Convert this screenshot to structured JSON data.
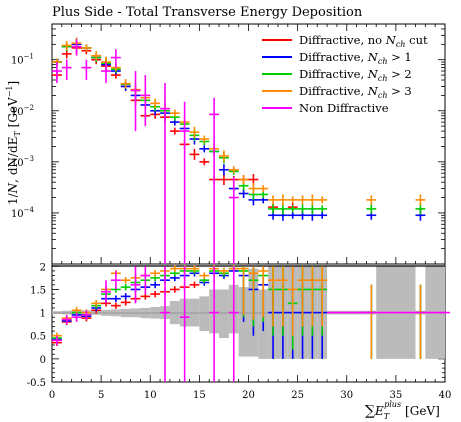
{
  "chart_data": [
    {
      "panel": "main",
      "type": "scatter",
      "title": "Plus Side - Total Transverse Energy Deposition",
      "ylabel": "1/N dN/dE_T [GeV^-1]",
      "ylabel_parts": {
        "one": "1/",
        "n": "N",
        "dn": ", dN/dE",
        "t": "T",
        "unit": "[GeV",
        "exp": "−1",
        "close": "]"
      },
      "yscale": "log",
      "xlim": [
        0,
        40
      ],
      "ylim": [
        1e-05,
        0.5
      ],
      "yticks": [
        {
          "v": 0.1,
          "base": "10",
          "exp": "−1"
        },
        {
          "v": 0.01,
          "base": "10",
          "exp": "−2"
        },
        {
          "v": 0.001,
          "base": "10",
          "exp": "−3"
        },
        {
          "v": 0.0001,
          "base": "10",
          "exp": "−4"
        }
      ],
      "legend_position": "top-right",
      "legend": [
        {
          "key": "nocut",
          "color": "#ff0000",
          "pre": "Diffractive, no ",
          "sym": "N",
          "sub": "ch",
          "post": " cut"
        },
        {
          "key": "gt1",
          "color": "#0000ff",
          "pre": "Diffractive, ",
          "sym": "N",
          "sub": "ch",
          "post": " > 1"
        },
        {
          "key": "gt2",
          "color": "#00cc00",
          "pre": "Diffractive, ",
          "sym": "N",
          "sub": "ch",
          "post": " > 2"
        },
        {
          "key": "gt3",
          "color": "#ff8c00",
          "pre": "Diffractive, ",
          "sym": "N",
          "sub": "ch",
          "post": " > 3"
        },
        {
          "key": "nondiff",
          "color": "#ff00ff",
          "pre": "Non Diffractive",
          "sym": "",
          "sub": "",
          "post": ""
        }
      ],
      "series": [
        {
          "name": "Diffractive, no N_ch cut",
          "key": "nocut",
          "color": "#ff0000",
          "x": [
            0.5,
            1.5,
            2.5,
            3.5,
            4.5,
            5.5,
            6.5,
            7.5,
            8.5,
            9.5,
            10.5,
            11.5,
            12.5,
            13.5,
            14.5,
            15.5,
            16.5,
            17.5,
            18.5,
            19.5,
            20.5,
            22.5,
            24.5
          ],
          "y": [
            0.05,
            0.13,
            0.17,
            0.15,
            0.1,
            0.075,
            0.05,
            0.03,
            0.016,
            0.008,
            0.0085,
            0.0075,
            0.004,
            0.0022,
            0.0014,
            0.001,
            0.00045,
            0.00045,
            0.00045,
            0.00045,
            0.00045,
            0.00013,
            0.00013
          ]
        },
        {
          "name": "Diffractive, N_ch > 1",
          "key": "gt1",
          "color": "#0000ff",
          "x": [
            0.5,
            1.5,
            2.5,
            3.5,
            4.5,
            5.5,
            6.5,
            7.5,
            8.5,
            9.5,
            10.5,
            11.5,
            12.5,
            13.5,
            14.5,
            15.5,
            16.5,
            17.5,
            18.5,
            19.5,
            20.5,
            21.5,
            22.5,
            23.5,
            24.5,
            25.5,
            26.5,
            27.5,
            32.5,
            37.5
          ],
          "y": [
            0.09,
            0.18,
            0.2,
            0.17,
            0.11,
            0.08,
            0.06,
            0.03,
            0.02,
            0.013,
            0.01,
            0.009,
            0.006,
            0.0045,
            0.0028,
            0.0018,
            0.0016,
            0.0007,
            0.0003,
            0.00024,
            0.00018,
            0.00018,
            9e-05,
            9e-05,
            9e-05,
            9e-05,
            9e-05,
            9e-05,
            9e-05,
            9e-05
          ]
        },
        {
          "name": "Diffractive, N_ch > 2",
          "key": "gt2",
          "color": "#00cc00",
          "x": [
            0.5,
            1.5,
            2.5,
            3.5,
            4.5,
            5.5,
            6.5,
            7.5,
            8.5,
            9.5,
            10.5,
            11.5,
            12.5,
            13.5,
            14.5,
            15.5,
            16.5,
            17.5,
            18.5,
            19.5,
            20.5,
            21.5,
            22.5,
            23.5,
            24.5,
            25.5,
            26.5,
            27.5,
            32.5,
            37.5
          ],
          "y": [
            0.09,
            0.18,
            0.21,
            0.17,
            0.11,
            0.085,
            0.065,
            0.033,
            0.025,
            0.016,
            0.012,
            0.01,
            0.0075,
            0.0055,
            0.0033,
            0.0025,
            0.0016,
            0.0012,
            0.00065,
            0.00034,
            0.00023,
            0.00023,
            0.00012,
            0.00012,
            0.00012,
            0.00012,
            0.00012,
            0.00012,
            0.00012,
            0.00012
          ]
        },
        {
          "name": "Diffractive, N_ch > 3",
          "key": "gt3",
          "color": "#ff8c00",
          "x": [
            0.5,
            1.5,
            2.5,
            3.5,
            4.5,
            5.5,
            6.5,
            7.5,
            8.5,
            9.5,
            10.5,
            11.5,
            12.5,
            13.5,
            14.5,
            15.5,
            16.5,
            17.5,
            18.5,
            19.5,
            20.5,
            21.5,
            22.5,
            23.5,
            24.5,
            25.5,
            26.5,
            27.5,
            32.5,
            37.5
          ],
          "y": [
            0.09,
            0.19,
            0.21,
            0.17,
            0.12,
            0.09,
            0.07,
            0.034,
            0.026,
            0.018,
            0.014,
            0.011,
            0.009,
            0.006,
            0.0038,
            0.0028,
            0.0018,
            0.0013,
            0.0007,
            0.00045,
            0.0003,
            0.0003,
            0.00018,
            0.00018,
            0.00018,
            0.00018,
            0.00018,
            0.00018,
            0.00018,
            0.00018
          ]
        },
        {
          "name": "Non Diffractive",
          "key": "nondiff",
          "color": "#ff00ff",
          "x": [
            0.5,
            1.5,
            2.5,
            3.5,
            5.5,
            6.5,
            8.5,
            9.5,
            11.5,
            13.5,
            16.5,
            18.5
          ],
          "y": [
            0.06,
            0.07,
            0.18,
            0.07,
            0.06,
            0.11,
            0.025,
            0.02,
            0.011,
            0.004,
            0.0085,
            0.0002
          ],
          "ylo": [
            0.035,
            0.04,
            0.12,
            0.04,
            0.035,
            0.07,
            0.004,
            0.005,
            1e-05,
            1e-05,
            1e-05,
            1e-05
          ],
          "yhi": [
            0.09,
            0.1,
            0.25,
            0.1,
            0.09,
            0.16,
            0.06,
            0.05,
            0.035,
            0.015,
            0.018,
            0.0005
          ]
        }
      ]
    },
    {
      "panel": "ratio",
      "type": "scatter",
      "xlabel_parts": {
        "sum": "∑",
        "e": "E",
        "t": "T",
        "plus": "plus",
        "unit": "[GeV]"
      },
      "xlim": [
        0,
        40
      ],
      "ylim": [
        -0.5,
        2.05
      ],
      "xticks": [
        0,
        5,
        10,
        15,
        20,
        25,
        30,
        35,
        40
      ],
      "yticks": [
        -0.5,
        0,
        0.5,
        1,
        1.5,
        2
      ],
      "band": {
        "x": [
          0,
          1,
          2,
          3,
          4,
          5,
          6,
          7,
          8,
          9,
          10,
          11,
          12,
          13,
          14,
          15,
          16,
          17,
          18,
          19,
          20,
          21,
          22,
          23,
          24,
          25,
          26,
          27,
          28,
          32,
          33,
          37,
          38,
          40
        ],
        "lo": [
          0.97,
          0.96,
          0.95,
          0.94,
          0.95,
          0.93,
          0.92,
          0.9,
          0.9,
          0.88,
          0.87,
          0.86,
          0.75,
          0.7,
          0.7,
          0.6,
          0.55,
          0.45,
          0.55,
          0.05,
          0.05,
          0.0,
          0.0,
          0.0,
          0.0,
          0.0,
          0.0,
          0.0,
          0.96,
          0.96,
          0.0,
          0.96,
          0.0,
          0.96
        ],
        "hi": [
          1.03,
          1.04,
          1.05,
          1.05,
          1.05,
          1.06,
          1.07,
          1.08,
          1.09,
          1.1,
          1.12,
          1.14,
          1.25,
          1.3,
          1.3,
          1.35,
          1.5,
          1.5,
          1.6,
          1.55,
          1.95,
          1.5,
          2.0,
          2.0,
          2.0,
          2.0,
          2.0,
          2.0,
          1.04,
          1.04,
          2.0,
          1.04,
          2.0,
          1.04
        ]
      },
      "series": [
        {
          "name": "nocut",
          "color": "#ff0000",
          "x": [
            0.5,
            1.5,
            2.5,
            3.5,
            4.5,
            5.5,
            6.5,
            7.5,
            8.5,
            9.5,
            10.5,
            11.5,
            12.5,
            13.5,
            14.5
          ],
          "y": [
            0.35,
            0.8,
            0.9,
            0.88,
            1.05,
            1.2,
            1.15,
            1.22,
            1.3,
            1.35,
            1.4,
            1.45,
            1.5,
            1.55,
            1.6
          ]
        },
        {
          "name": "gt1",
          "color": "#0000ff",
          "x": [
            0.5,
            1.5,
            2.5,
            3.5,
            4.5,
            5.5,
            6.5,
            7.5,
            8.5,
            9.5,
            10.5,
            11.5,
            12.5,
            13.5,
            14.5,
            15.5,
            16.5,
            17.5,
            18.5,
            19.5,
            20.5,
            21.5,
            22.5,
            23.5,
            24.5,
            25.5,
            26.5,
            27.5,
            32.5,
            37.5
          ],
          "y": [
            0.42,
            0.82,
            0.95,
            0.92,
            1.1,
            1.3,
            1.3,
            1.35,
            1.5,
            1.55,
            1.6,
            1.7,
            1.75,
            1.8,
            1.85,
            1.65,
            1.85,
            1.8,
            1.9,
            1.8,
            1.5,
            1.6,
            1.0,
            1.0,
            1.0,
            1.0,
            1.0,
            1.0,
            1.0,
            1.0
          ]
        },
        {
          "name": "gt2",
          "color": "#00cc00",
          "x": [
            0.5,
            1.5,
            2.5,
            3.5,
            4.5,
            5.5,
            6.5,
            7.5,
            8.5,
            9.5,
            10.5,
            11.5,
            12.5,
            13.5,
            14.5,
            15.5,
            16.5,
            17.5,
            18.5,
            19.5,
            20.5,
            21.5,
            22.5,
            23.5,
            24.5,
            25.5,
            26.5,
            27.5,
            32.5,
            37.5
          ],
          "y": [
            0.45,
            0.85,
            1.0,
            0.95,
            1.15,
            1.4,
            1.5,
            1.55,
            1.65,
            1.7,
            1.75,
            1.8,
            1.85,
            1.9,
            1.9,
            1.7,
            1.9,
            1.85,
            1.95,
            1.9,
            1.7,
            1.8,
            1.5,
            1.5,
            1.2,
            1.5,
            1.5,
            1.5,
            1.0,
            1.0
          ]
        },
        {
          "name": "gt3",
          "color": "#ff8c00",
          "x": [
            0.5,
            1.5,
            2.5,
            3.5,
            4.5,
            5.5,
            6.5,
            7.5,
            8.5,
            9.5,
            10.5,
            11.5,
            12.5,
            13.5,
            14.5,
            15.5,
            16.5,
            17.5,
            18.5,
            19.5,
            20.5,
            21.5,
            22.5,
            23.5,
            24.5,
            25.5,
            26.5,
            27.5,
            32.5,
            37.5
          ],
          "y": [
            0.5,
            0.88,
            1.05,
            1.0,
            1.2,
            1.5,
            1.85,
            1.7,
            1.75,
            1.8,
            1.85,
            1.9,
            1.95,
            1.95,
            1.95,
            1.8,
            1.95,
            1.9,
            1.95,
            1.95,
            1.85,
            1.9,
            1.7,
            1.7,
            1.5,
            1.7,
            1.7,
            1.7,
            1.0,
            1.0
          ]
        },
        {
          "name": "nondiff",
          "color": "#ff00ff",
          "x": [
            0.5,
            1.5,
            2.5,
            3.5,
            5.5,
            6.5,
            8.5,
            9.5,
            11.5,
            13.5,
            16.5,
            18.5,
            32,
            40
          ],
          "y": [
            0.4,
            0.85,
            0.9,
            0.95,
            1.45,
            1.7,
            1.6,
            1.8,
            1.0,
            0.9,
            1.0,
            1.0,
            1.0,
            1.0
          ],
          "ylo": [
            0.3,
            0.75,
            0.8,
            0.85,
            1.2,
            1.5,
            1.2,
            1.4,
            -0.5,
            -0.5,
            -0.5,
            -0.5,
            1.0,
            1.0
          ],
          "yhi": [
            0.5,
            0.95,
            1.0,
            1.05,
            1.7,
            1.9,
            2.0,
            2.0,
            2.0,
            2.0,
            2.0,
            2.0,
            1.0,
            1.0
          ]
        }
      ]
    }
  ]
}
